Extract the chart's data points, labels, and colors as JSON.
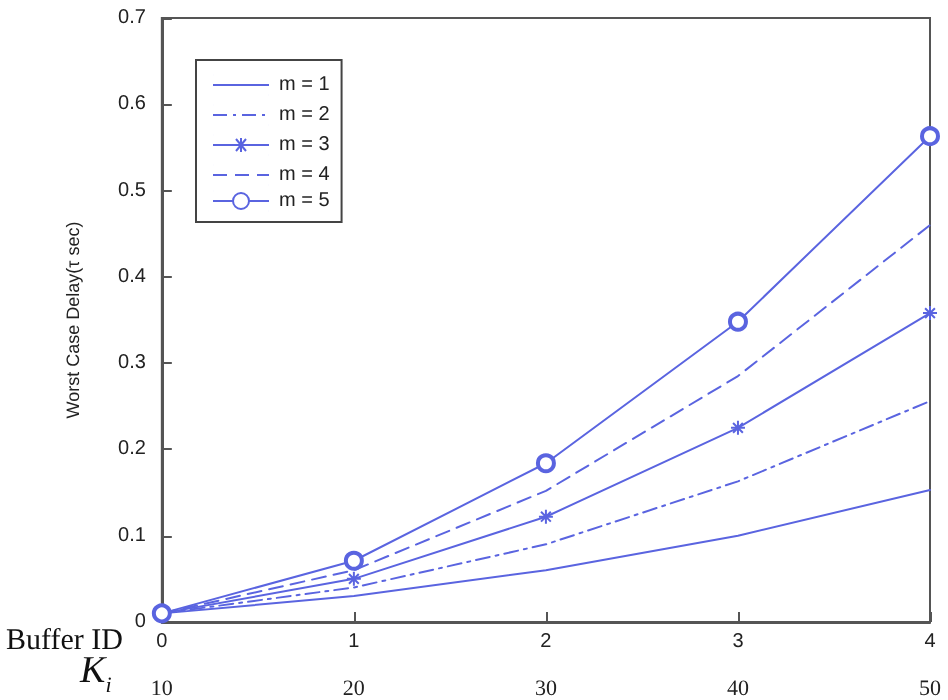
{
  "chart_data": {
    "type": "line",
    "xlabel": "Buffer ID",
    "x2label": "K$_{i}$",
    "ylabel": "Worst Case Delay(τ sec)",
    "x": [
      0,
      1,
      2,
      3,
      4
    ],
    "xlim": [
      0,
      4
    ],
    "xticks": [
      0,
      1,
      2,
      3,
      4
    ],
    "x2lim": [
      10,
      50
    ],
    "x2ticks": [
      10,
      20,
      30,
      40,
      50
    ],
    "ylim": [
      0,
      0.7
    ],
    "yticks": [
      0,
      0.1,
      0.2,
      0.3,
      0.4,
      0.5,
      0.6,
      0.7
    ],
    "grid": false,
    "legend": "top left",
    "series": [
      {
        "name": "m = 1",
        "color": "#5a64e0",
        "values": [
          0.01,
          0.03,
          0.06,
          0.1,
          0.153
        ],
        "line_style": "solid",
        "marker": "none"
      },
      {
        "name": "m = 2",
        "color": "#5a64e0",
        "values": [
          0.01,
          0.04,
          0.09,
          0.163,
          0.256
        ],
        "line_style": "dashdot",
        "marker": "none"
      },
      {
        "name": "m = 3",
        "color": "#5a64e0",
        "values": [
          0.01,
          0.05,
          0.122,
          0.225,
          0.358
        ],
        "line_style": "solid",
        "marker": "cross"
      },
      {
        "name": "m = 4",
        "color": "#5a64e0",
        "values": [
          0.01,
          0.06,
          0.152,
          0.285,
          0.46
        ],
        "line_style": "dashed",
        "marker": "none"
      },
      {
        "name": "m = 5",
        "color": "#5a64e0",
        "values": [
          0.01,
          0.071,
          0.184,
          0.348,
          0.563
        ],
        "line_style": "solid",
        "marker": "circle"
      }
    ]
  }
}
